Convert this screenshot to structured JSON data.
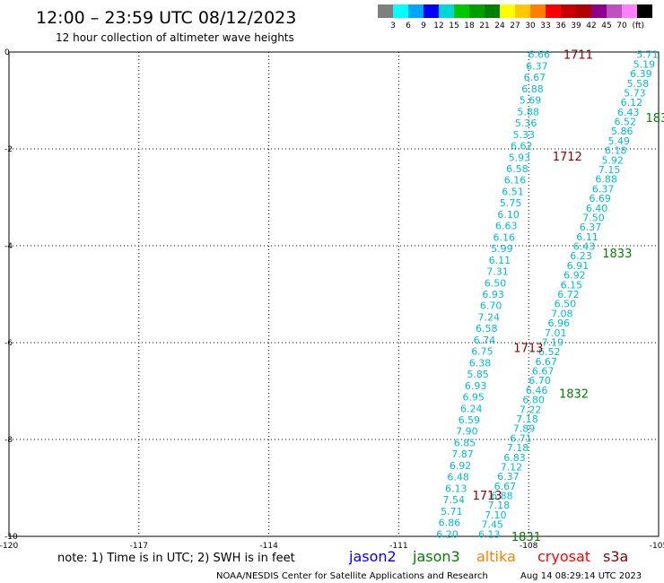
{
  "header": {
    "title": "12:00 – 23:59 UTC 08/12/2023",
    "subtitle": "12 hour collection of altimeter wave heights"
  },
  "colorbar": {
    "unit": "(ft)",
    "ticks": [
      "3",
      "6",
      "9",
      "12",
      "15",
      "18",
      "21",
      "24",
      "27",
      "30",
      "33",
      "36",
      "39",
      "42",
      "45",
      "70"
    ],
    "colors": [
      "#7f7f7f",
      "#00ffff",
      "#00a5ff",
      "#0000ff",
      "#00d8d8",
      "#00c800",
      "#00a000",
      "#008000",
      "#ffff00",
      "#ffc800",
      "#ff8000",
      "#ff0000",
      "#c80000",
      "#b00000",
      "#8c008c",
      "#c050c0",
      "#ff80ff",
      "#000000"
    ]
  },
  "footer": {
    "note": "note: 1) Time is in UTC; 2) SWH is in feet",
    "satellites": [
      {
        "name": "jason2",
        "color": "#0000ff"
      },
      {
        "name": "jason3",
        "color": "#008000"
      },
      {
        "name": "altika",
        "color": "#ff8000"
      },
      {
        "name": "cryosat",
        "color": "#ff0000"
      },
      {
        "name": "s3a",
        "color": "#8b0000"
      }
    ],
    "credit": "NOAA/NESDIS Center for Satellite Applications and Research",
    "timestamp": "Aug 14 08:29:14 UTC 2023"
  },
  "chart_data": {
    "type": "scatter",
    "xlim": [
      -120,
      -105
    ],
    "ylim": [
      -10,
      0
    ],
    "xticks": [
      {
        "v": -120,
        "label": "-120"
      },
      {
        "v": -117,
        "label": "-117"
      },
      {
        "v": -114,
        "label": "-114"
      },
      {
        "v": -111,
        "label": "-111"
      },
      {
        "v": -108,
        "label": "-108"
      },
      {
        "v": -105,
        "label": "-105"
      }
    ],
    "yticks": [
      {
        "v": 0,
        "label": "0"
      },
      {
        "v": -2,
        "label": "-2"
      },
      {
        "v": -4,
        "label": "-4"
      },
      {
        "v": -6,
        "label": "-6"
      },
      {
        "v": -8,
        "label": "-8"
      },
      {
        "v": -10,
        "label": "-10"
      }
    ],
    "grid": true,
    "value_color": "#00bcd4",
    "tracks": [
      {
        "name": "track-west",
        "start": [
          -107.76,
          -0.05
        ],
        "end": [
          -109.88,
          -9.95
        ],
        "values": [
          "6.66",
          "6.37",
          "6.67",
          "6.88",
          "5.69",
          "5.88",
          "5.36",
          "5.33",
          "6.62",
          "5.93",
          "6.58",
          "6.16",
          "6.51",
          "5.75",
          "6.10",
          "6.63",
          "6.16",
          "5.99",
          "6.11",
          "7.31",
          "6.50",
          "6.93",
          "6.70",
          "7.24",
          "6.58",
          "6.74",
          "6.75",
          "6.38",
          "5.85",
          "6.93",
          "6.95",
          "6.24",
          "6.59",
          "7.90",
          "6.85",
          "7.87",
          "6.92",
          "6.48",
          "6.13",
          "7.54",
          "5.71",
          "6.86",
          "6.20"
        ]
      },
      {
        "name": "track-east",
        "start": [
          -105.26,
          -0.05
        ],
        "end": [
          -108.91,
          -9.95
        ],
        "values": [
          "5.71",
          "5.19",
          "6.39",
          "5.58",
          "5.73",
          "6.12",
          "6.43",
          "6.52",
          "5.86",
          "5.49",
          "6.18",
          "5.92",
          "7.15",
          "6.88",
          "6.37",
          "6.69",
          "6.40",
          "7.50",
          "6.37",
          "6.11",
          "6.43",
          "6.23",
          "6.91",
          "6.92",
          "6.15",
          "6.72",
          "6.50",
          "7.08",
          "6.96",
          "7.01",
          "7.19",
          "6.52",
          "6.67",
          "6.67",
          "6.70",
          "6.46",
          "6.80",
          "7.22",
          "7.18",
          "7.89",
          "6.71",
          "7.18",
          "6.83",
          "7.12",
          "6.37",
          "6.67",
          "6.88",
          "7.18",
          "7.10",
          "7.45",
          "6.13"
        ]
      }
    ],
    "time_labels": [
      {
        "text": "1711",
        "x": -107.2,
        "y": -0.05,
        "color": "#8b0000"
      },
      {
        "text": "1712",
        "x": -107.45,
        "y": -2.15,
        "color": "#8b0000"
      },
      {
        "text": "1713",
        "x": -108.35,
        "y": -6.1,
        "color": "#8b0000"
      },
      {
        "text": "1713",
        "x": -109.3,
        "y": -9.15,
        "color": "#8b0000"
      },
      {
        "text": "183",
        "x": -105.3,
        "y": -1.35,
        "color": "#008000"
      },
      {
        "text": "1833",
        "x": -106.3,
        "y": -4.15,
        "color": "#008000"
      },
      {
        "text": "1832",
        "x": -107.3,
        "y": -7.05,
        "color": "#008000"
      },
      {
        "text": "1831",
        "x": -108.4,
        "y": -10.0,
        "color": "#008000"
      }
    ]
  }
}
